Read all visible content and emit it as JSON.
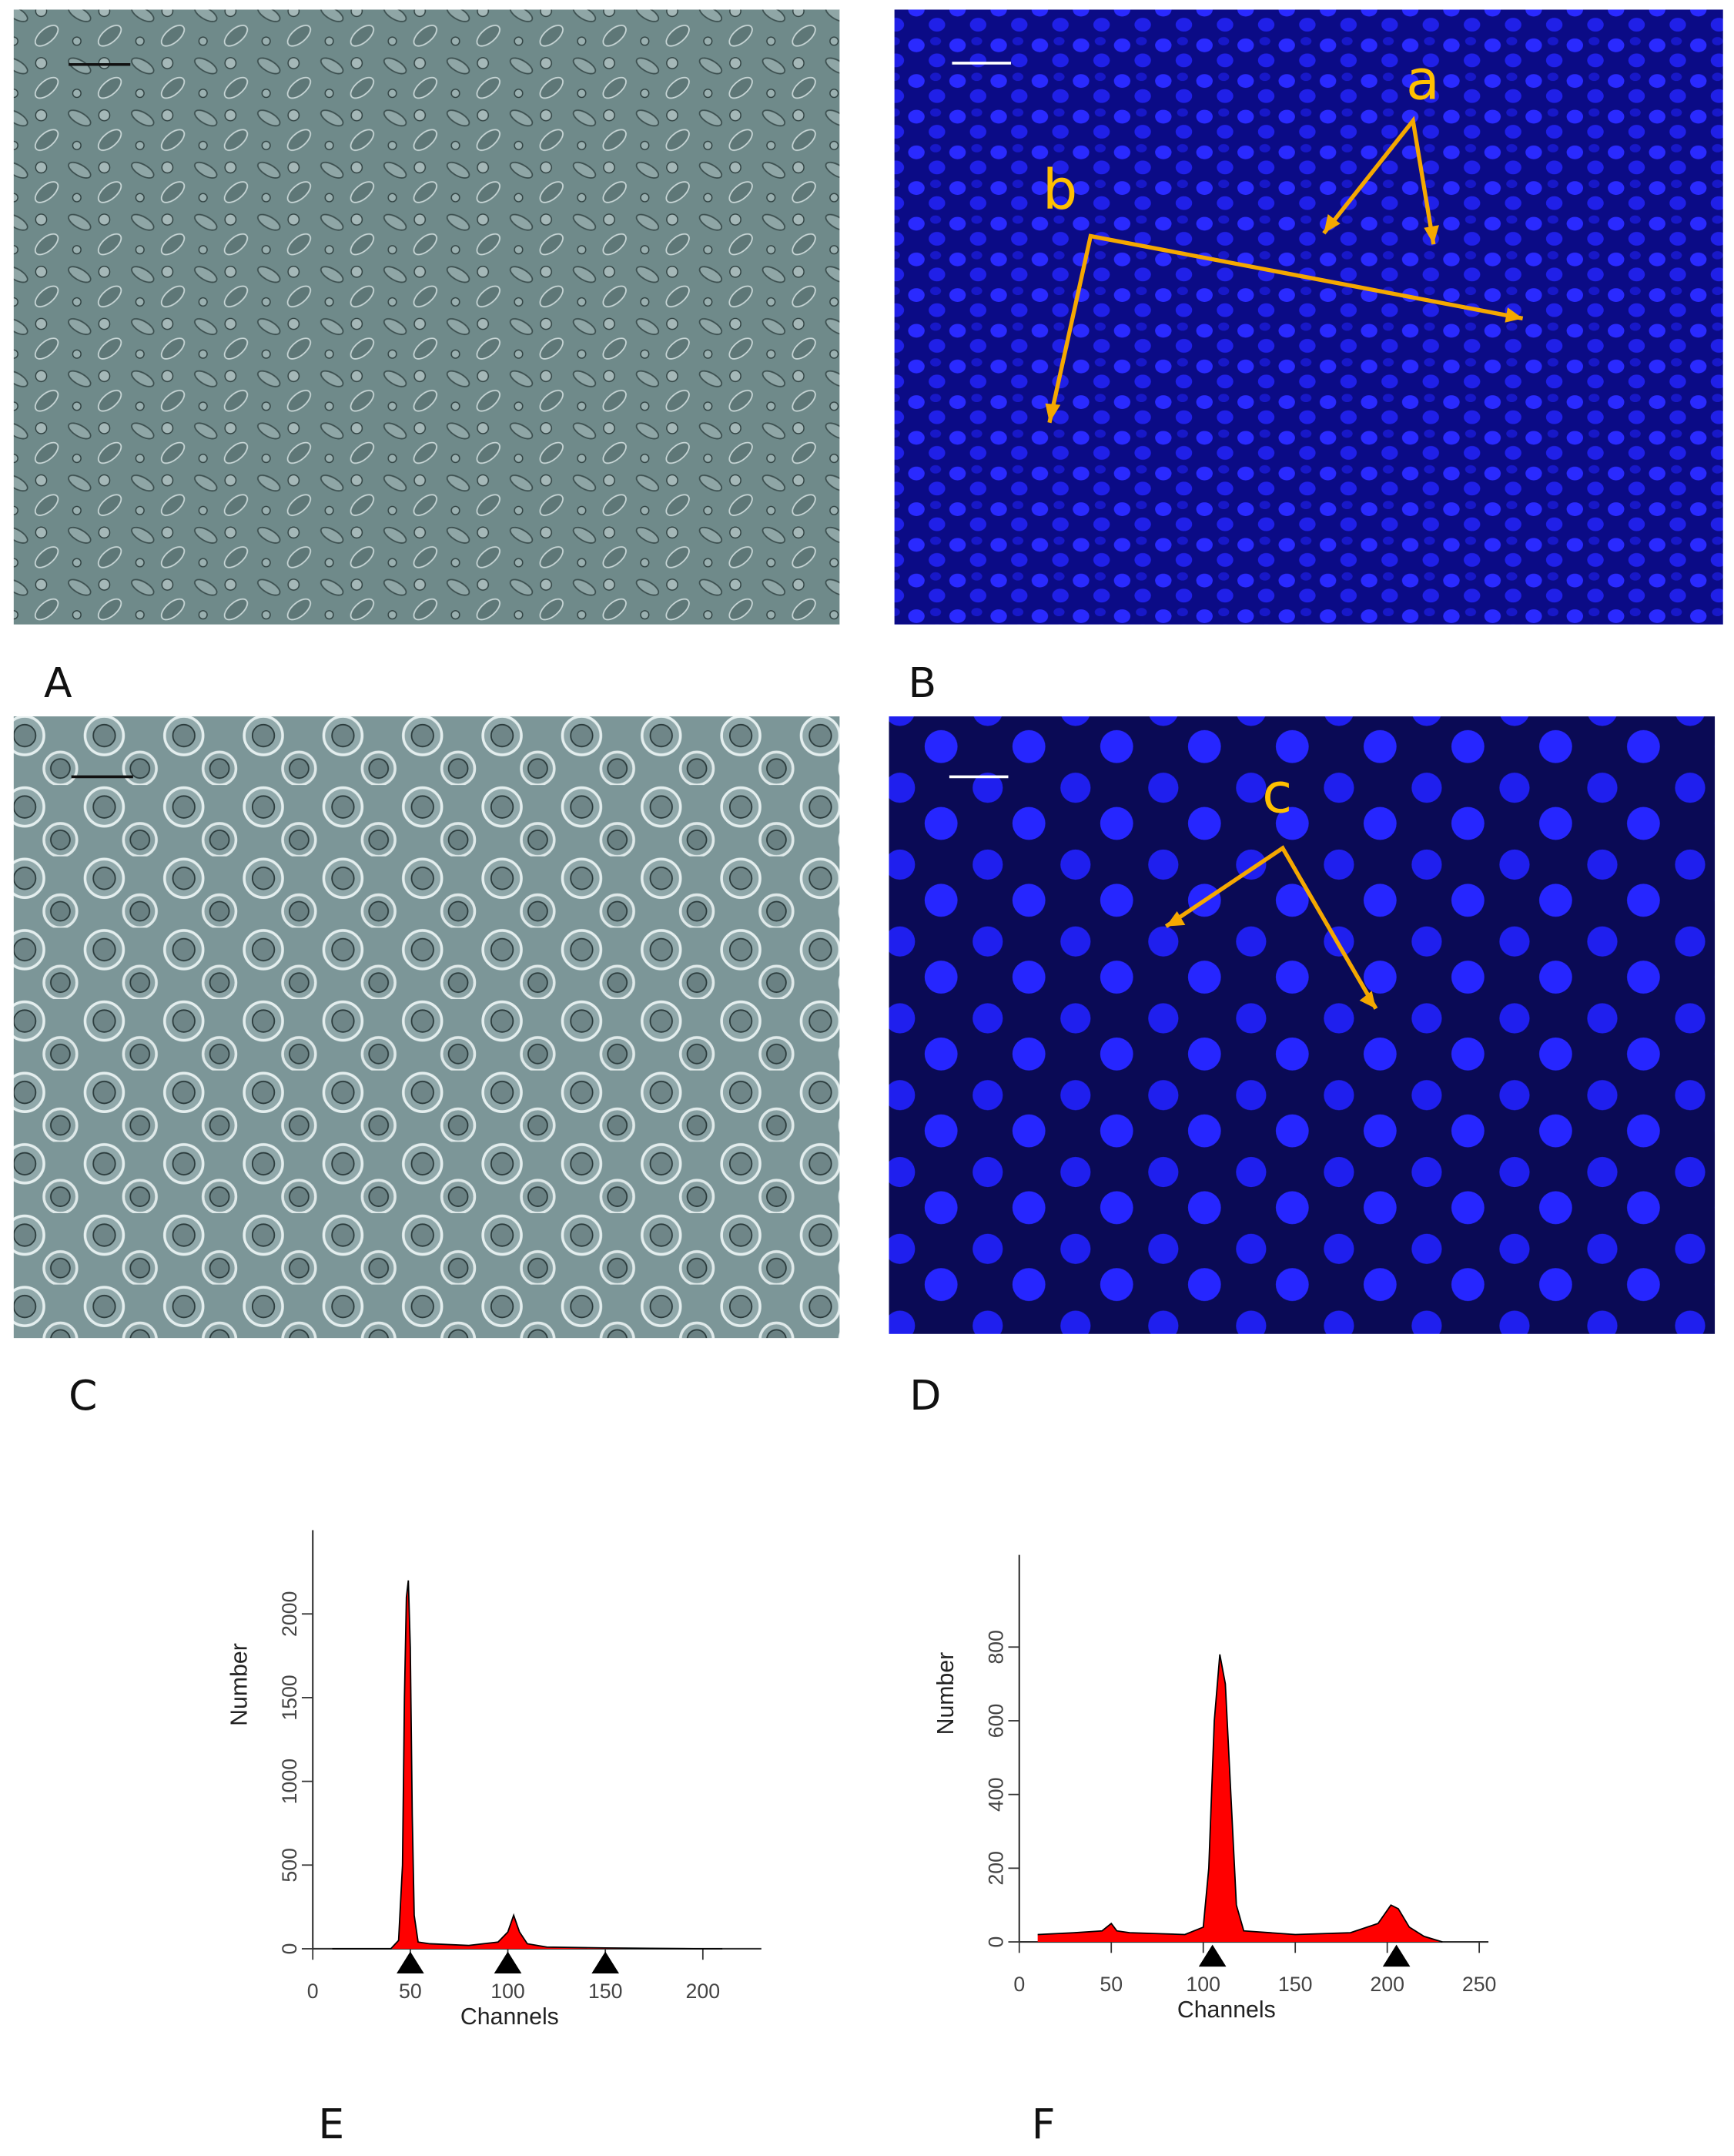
{
  "panels": [
    {
      "label": "A"
    },
    {
      "label": "B"
    },
    {
      "label": "C"
    },
    {
      "label": "D"
    },
    {
      "label": "E"
    },
    {
      "label": "F"
    }
  ],
  "annotations": [
    "a",
    "b",
    "c"
  ],
  "chart_data": [
    {
      "type": "area",
      "xlabel": "Channels",
      "ylabel": "Number",
      "x": [
        10,
        40,
        44,
        46,
        47,
        48,
        49,
        50,
        51,
        52,
        54,
        60,
        80,
        95,
        100,
        103,
        106,
        110,
        120,
        150,
        200,
        210
      ],
      "series": [
        {
          "color": "#ff0000",
          "values": [
            0,
            0,
            50,
            500,
            1500,
            2100,
            2200,
            1800,
            800,
            200,
            40,
            30,
            20,
            40,
            100,
            200,
            100,
            30,
            10,
            5,
            0,
            0
          ]
        }
      ],
      "markers": [
        50,
        100,
        150
      ],
      "xlim": [
        0,
        230
      ],
      "ylim": [
        0,
        2500
      ],
      "xticks": [
        0,
        50,
        100,
        150,
        200
      ],
      "yticks": [
        0,
        500,
        1000,
        1500,
        2000
      ]
    },
    {
      "type": "area",
      "xlabel": "Channels",
      "ylabel": "Number",
      "x": [
        10,
        30,
        45,
        50,
        53,
        60,
        90,
        100,
        103,
        106,
        109,
        112,
        115,
        118,
        122,
        150,
        180,
        195,
        202,
        206,
        212,
        220,
        230
      ],
      "series": [
        {
          "color": "#ff0000",
          "values": [
            20,
            25,
            30,
            50,
            30,
            25,
            20,
            40,
            200,
            600,
            780,
            700,
            400,
            100,
            30,
            20,
            25,
            50,
            100,
            90,
            40,
            15,
            0
          ]
        }
      ],
      "markers": [
        105,
        205
      ],
      "xlim": [
        0,
        255
      ],
      "ylim": [
        0,
        1050
      ],
      "xticks": [
        0,
        50,
        100,
        150,
        200,
        250
      ],
      "yticks": [
        0,
        200,
        400,
        600,
        800
      ]
    }
  ]
}
